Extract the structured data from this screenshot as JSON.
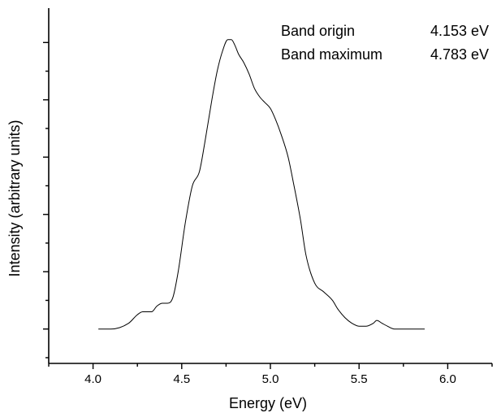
{
  "chart_data": {
    "type": "line",
    "title": "",
    "xlabel": "Energy (eV)",
    "ylabel": "Intensity (arbitrary units)",
    "xlim": [
      3.75,
      6.25
    ],
    "ylim": [
      -0.12,
      1.12
    ],
    "x_ticks": [
      4.0,
      4.5,
      5.0,
      5.5,
      6.0
    ],
    "x_tick_labels": [
      "4.0",
      "4.5",
      "5.0",
      "5.5",
      "6.0"
    ],
    "y_tick_labels_shown": false,
    "grid": false,
    "annotations": [
      {
        "label": "Band origin",
        "value": "4.153 eV"
      },
      {
        "label": "Band maximum",
        "value": "4.783 eV"
      }
    ],
    "series": [
      {
        "x": [
          4.03,
          4.1,
          4.2,
          4.25,
          4.28,
          4.3,
          4.33,
          4.36,
          4.39,
          4.42,
          4.45,
          4.48,
          4.52,
          4.56,
          4.6,
          4.63,
          4.67,
          4.7,
          4.73,
          4.76,
          4.78,
          4.8,
          4.82,
          4.85,
          4.88,
          4.91,
          4.94,
          4.97,
          5.0,
          5.03,
          5.06,
          5.1,
          5.13,
          5.17,
          5.2,
          5.25,
          5.3,
          5.35,
          5.38,
          5.42,
          5.46,
          5.5,
          5.54,
          5.58,
          5.6,
          5.63,
          5.66,
          5.7,
          5.8,
          5.87
        ],
        "y": [
          0.0,
          0.0,
          0.02,
          0.05,
          0.06,
          0.06,
          0.06,
          0.08,
          0.09,
          0.09,
          0.11,
          0.2,
          0.37,
          0.5,
          0.55,
          0.65,
          0.8,
          0.9,
          0.97,
          1.01,
          1.01,
          0.99,
          0.96,
          0.93,
          0.89,
          0.84,
          0.81,
          0.79,
          0.77,
          0.73,
          0.68,
          0.6,
          0.51,
          0.38,
          0.26,
          0.16,
          0.13,
          0.1,
          0.07,
          0.04,
          0.02,
          0.01,
          0.01,
          0.02,
          0.03,
          0.02,
          0.01,
          0.0,
          0.0,
          0.0
        ]
      }
    ]
  }
}
